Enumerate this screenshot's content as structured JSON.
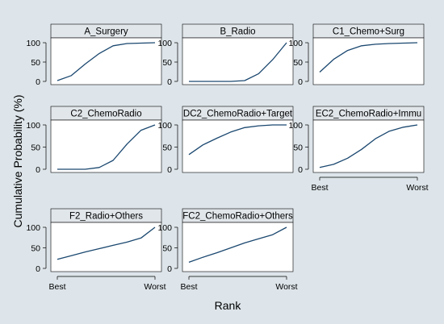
{
  "colors": {
    "outer_background": "#dde5ea",
    "plot_background": "#ffffff",
    "header_strip": "#e1e6ea",
    "line": "#1a476f"
  },
  "labels": {
    "y_axis": "Cumulative Probability (%)",
    "x_axis": "Rank"
  },
  "chart_data": {
    "type": "line",
    "layout": "small-multiples",
    "xlabel": "Rank",
    "ylabel": "Cumulative Probability (%)",
    "ylim": [
      0,
      100
    ],
    "y_ticks": [
      0,
      50,
      100
    ],
    "x_ticks": [
      "Best",
      "Worst"
    ],
    "ranks": [
      1,
      2,
      3,
      4,
      5,
      6,
      7,
      8
    ],
    "grid": false,
    "legend": "none",
    "panels": [
      {
        "title": "A_Surgery",
        "values": [
          2,
          15,
          45,
          72,
          92,
          98,
          99,
          100
        ]
      },
      {
        "title": "B_Radio",
        "values": [
          0,
          0,
          0,
          0,
          2,
          20,
          56,
          100
        ]
      },
      {
        "title": "C1_Chemo+Surg",
        "values": [
          24,
          57,
          80,
          92,
          96,
          98,
          99,
          100
        ]
      },
      {
        "title": "C2_ChemoRadio",
        "values": [
          0,
          0,
          0,
          4,
          20,
          57,
          88,
          100
        ]
      },
      {
        "title": "DC2_ChemoRadio+Target",
        "values": [
          33,
          55,
          70,
          84,
          94,
          98,
          100,
          100
        ]
      },
      {
        "title": "EC2_ChemoRadio+Immu",
        "values": [
          4,
          11,
          25,
          45,
          69,
          86,
          95,
          100
        ]
      },
      {
        "title": "F2_Radio+Others",
        "values": [
          22,
          31,
          40,
          48,
          56,
          64,
          74,
          100
        ]
      },
      {
        "title": "FC2_ChemoRadio+Others",
        "values": [
          15,
          27,
          38,
          50,
          62,
          72,
          82,
          100
        ]
      }
    ]
  }
}
